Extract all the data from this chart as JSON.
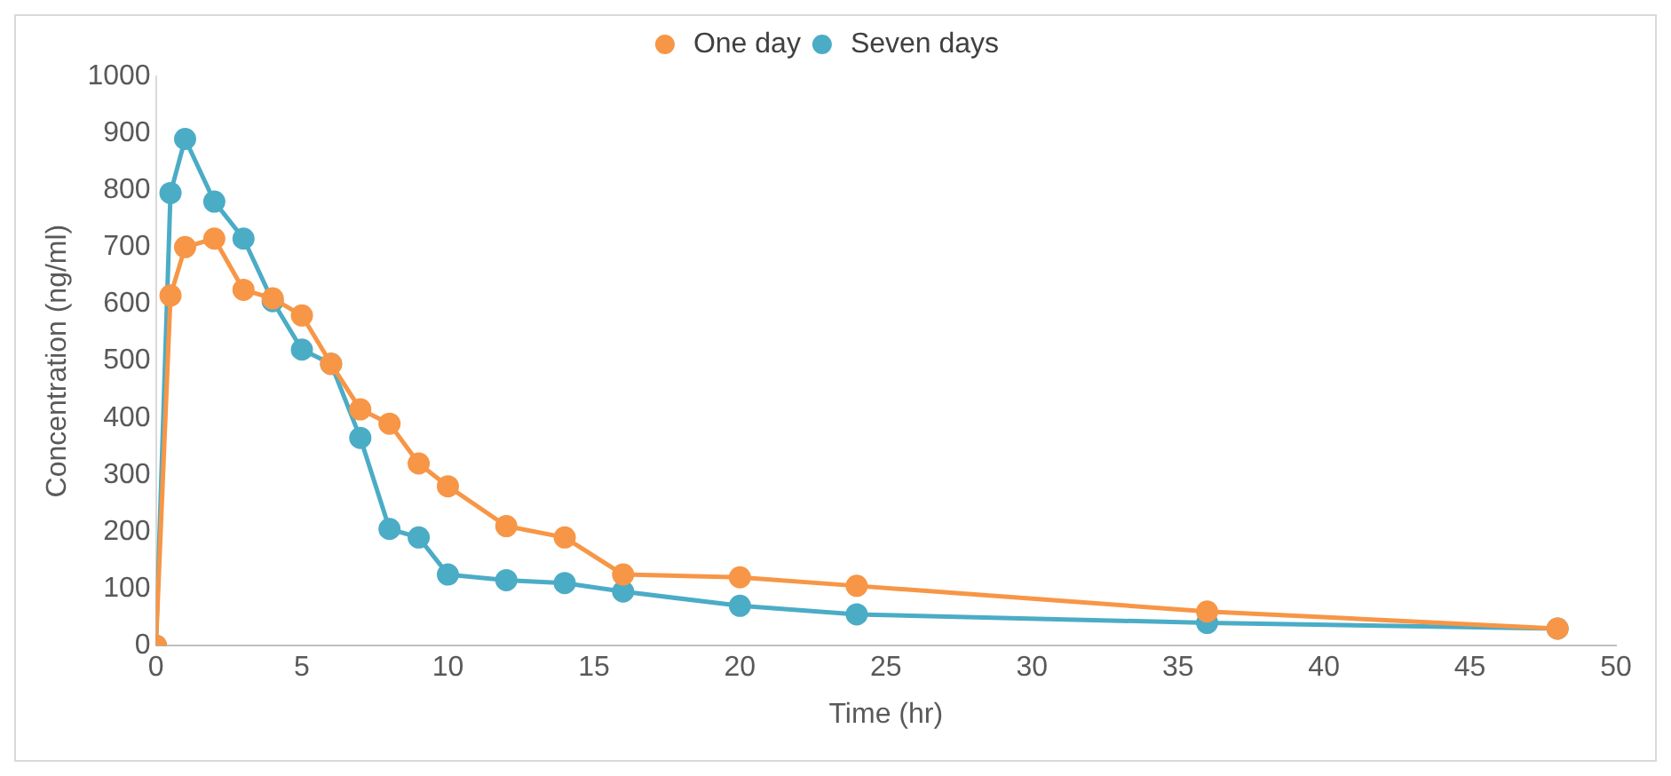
{
  "chart_data": {
    "type": "line",
    "xlabel": "Time (hr)",
    "ylabel": "Concentration (ng/ml)",
    "x": [
      0,
      0.5,
      1,
      2,
      3,
      4,
      5,
      6,
      7,
      8,
      9,
      10,
      12,
      14,
      16,
      20,
      24,
      36,
      48
    ],
    "series": [
      {
        "name": "One day",
        "color": "#f79646",
        "values": [
          0,
          615,
          700,
          715,
          625,
          610,
          580,
          495,
          415,
          390,
          320,
          280,
          210,
          190,
          125,
          120,
          105,
          60,
          30
        ]
      },
      {
        "name": "Seven days",
        "color": "#4bacc6",
        "values": [
          0,
          795,
          890,
          780,
          715,
          605,
          520,
          495,
          365,
          205,
          190,
          125,
          115,
          110,
          95,
          70,
          55,
          40,
          30
        ]
      }
    ],
    "xlim": [
      0,
      50
    ],
    "xticks": [
      0,
      5,
      10,
      15,
      20,
      25,
      30,
      35,
      40,
      45,
      50
    ],
    "ylim": [
      0,
      1000
    ],
    "yticks": [
      0,
      100,
      200,
      300,
      400,
      500,
      600,
      700,
      800,
      900,
      1000
    ],
    "grid": false,
    "legend": "top",
    "marker": "circle",
    "line_style": "solid"
  }
}
